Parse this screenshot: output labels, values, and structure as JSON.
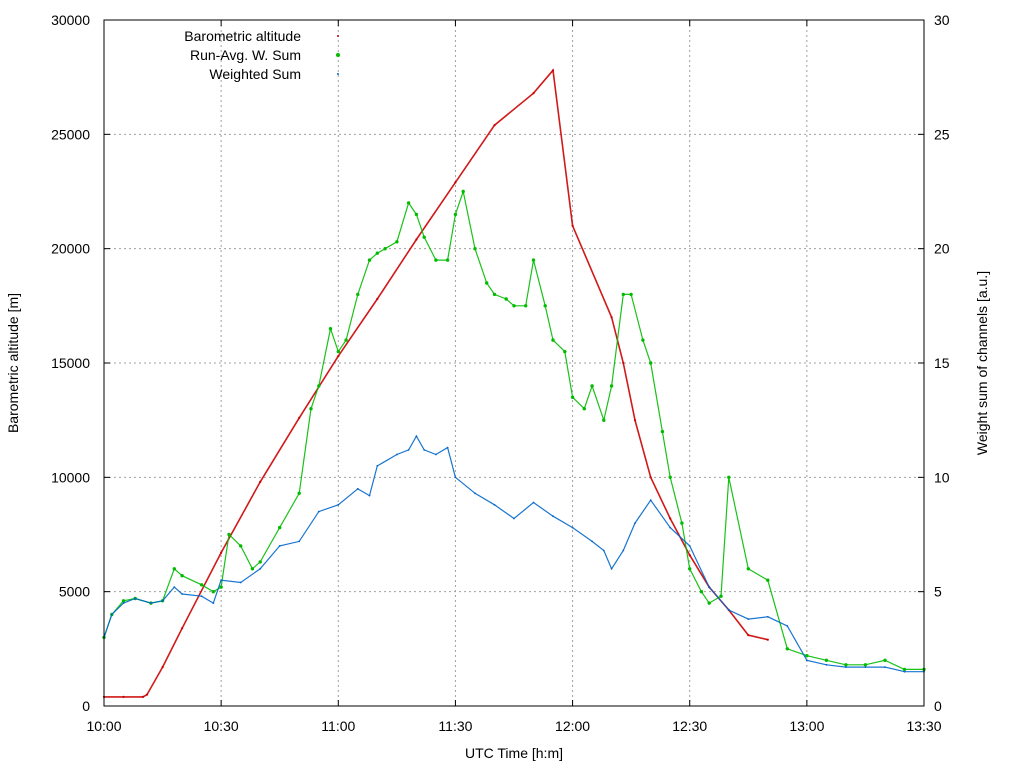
{
  "chart_data": {
    "type": "scatter",
    "xlabel": "UTC Time [h:m]",
    "ylabel": "Barometric altitude [m]",
    "y2label": "Weight sum of channels [a.u.]",
    "x_unit": "minutes after 10:00",
    "xlim": [
      0,
      210
    ],
    "ylim": [
      0,
      30000
    ],
    "y2lim": [
      0,
      30
    ],
    "x_ticks": [
      "10:00",
      "10:30",
      "11:00",
      "11:30",
      "12:00",
      "12:30",
      "13:00",
      "13:30"
    ],
    "y_ticks": [
      "0",
      "5000",
      "10000",
      "15000",
      "20000",
      "25000",
      "30000"
    ],
    "y2_ticks": [
      "0",
      "5",
      "10",
      "15",
      "20",
      "25",
      "30"
    ],
    "grid": true,
    "legend_position": "top-left",
    "legend": [
      "Barometric altitude",
      "Run-Avg. W. Sum",
      "Weighted Sum"
    ],
    "series": [
      {
        "name": "Barometric altitude",
        "axis": "y",
        "color": "#cc0000",
        "x": [
          0,
          5,
          10,
          11,
          15,
          20,
          30,
          40,
          50,
          60,
          70,
          80,
          90,
          100,
          110,
          115,
          120,
          130,
          133,
          136,
          140,
          145,
          150,
          155,
          160,
          165,
          170
        ],
        "y": [
          400,
          400,
          400,
          500,
          1700,
          3400,
          6700,
          9800,
          12600,
          15300,
          17800,
          20400,
          22900,
          25400,
          26800,
          27800,
          21000,
          17000,
          15000,
          12500,
          10000,
          8200,
          6600,
          5200,
          4200,
          3100,
          2900
        ]
      },
      {
        "name": "Run-Avg. W. Sum",
        "axis": "y2",
        "color": "#00bb00",
        "x": [
          0,
          2,
          5,
          8,
          12,
          15,
          18,
          20,
          25,
          28,
          30,
          32,
          35,
          38,
          40,
          45,
          50,
          53,
          55,
          58,
          60,
          62,
          65,
          68,
          70,
          72,
          75,
          78,
          80,
          82,
          85,
          88,
          90,
          92,
          95,
          98,
          100,
          103,
          105,
          108,
          110,
          113,
          115,
          118,
          120,
          123,
          125,
          128,
          130,
          133,
          135,
          138,
          140,
          143,
          145,
          148,
          150,
          153,
          155,
          158,
          160,
          165,
          170,
          175,
          180,
          185,
          190,
          195,
          200,
          205,
          210
        ],
        "y": [
          3.0,
          4.0,
          4.6,
          4.7,
          4.5,
          4.6,
          6.0,
          5.7,
          5.3,
          5.0,
          5.2,
          7.5,
          7.0,
          6.0,
          6.3,
          7.8,
          9.3,
          13.0,
          14.0,
          16.5,
          15.5,
          16.0,
          18.0,
          19.5,
          19.8,
          20.0,
          20.3,
          22.0,
          21.5,
          20.5,
          19.5,
          19.5,
          21.5,
          22.5,
          20.0,
          18.5,
          18.0,
          17.8,
          17.5,
          17.5,
          19.5,
          17.5,
          16.0,
          15.5,
          13.5,
          13.0,
          14.0,
          12.5,
          14.0,
          18.0,
          18.0,
          16.0,
          15.0,
          12.0,
          10.0,
          8.0,
          6.0,
          5.0,
          4.5,
          4.8,
          10.0,
          6.0,
          5.5,
          2.5,
          2.2,
          2.0,
          1.8,
          1.8,
          2.0,
          1.6,
          1.6
        ]
      },
      {
        "name": "Weighted Sum",
        "axis": "y2",
        "color": "#0066cc",
        "x": [
          0,
          2,
          5,
          8,
          12,
          15,
          18,
          20,
          25,
          28,
          30,
          35,
          40,
          45,
          50,
          55,
          60,
          65,
          68,
          70,
          75,
          78,
          80,
          82,
          85,
          88,
          90,
          95,
          100,
          105,
          110,
          115,
          120,
          125,
          128,
          130,
          133,
          136,
          140,
          145,
          150,
          155,
          160,
          165,
          170,
          175,
          180,
          185,
          190,
          195,
          200,
          205,
          210
        ],
        "y": [
          3.0,
          4.0,
          4.5,
          4.7,
          4.5,
          4.6,
          5.2,
          4.9,
          4.8,
          4.5,
          5.5,
          5.4,
          6.0,
          7.0,
          7.2,
          8.5,
          8.8,
          9.5,
          9.2,
          10.5,
          11.0,
          11.2,
          11.8,
          11.2,
          11.0,
          11.3,
          10.0,
          9.3,
          8.8,
          8.2,
          8.9,
          8.3,
          7.8,
          7.2,
          6.8,
          6.0,
          6.8,
          8.0,
          9.0,
          7.8,
          7.0,
          5.2,
          4.2,
          3.8,
          3.9,
          3.5,
          2.0,
          1.8,
          1.7,
          1.7,
          1.7,
          1.5,
          1.5
        ]
      }
    ]
  }
}
